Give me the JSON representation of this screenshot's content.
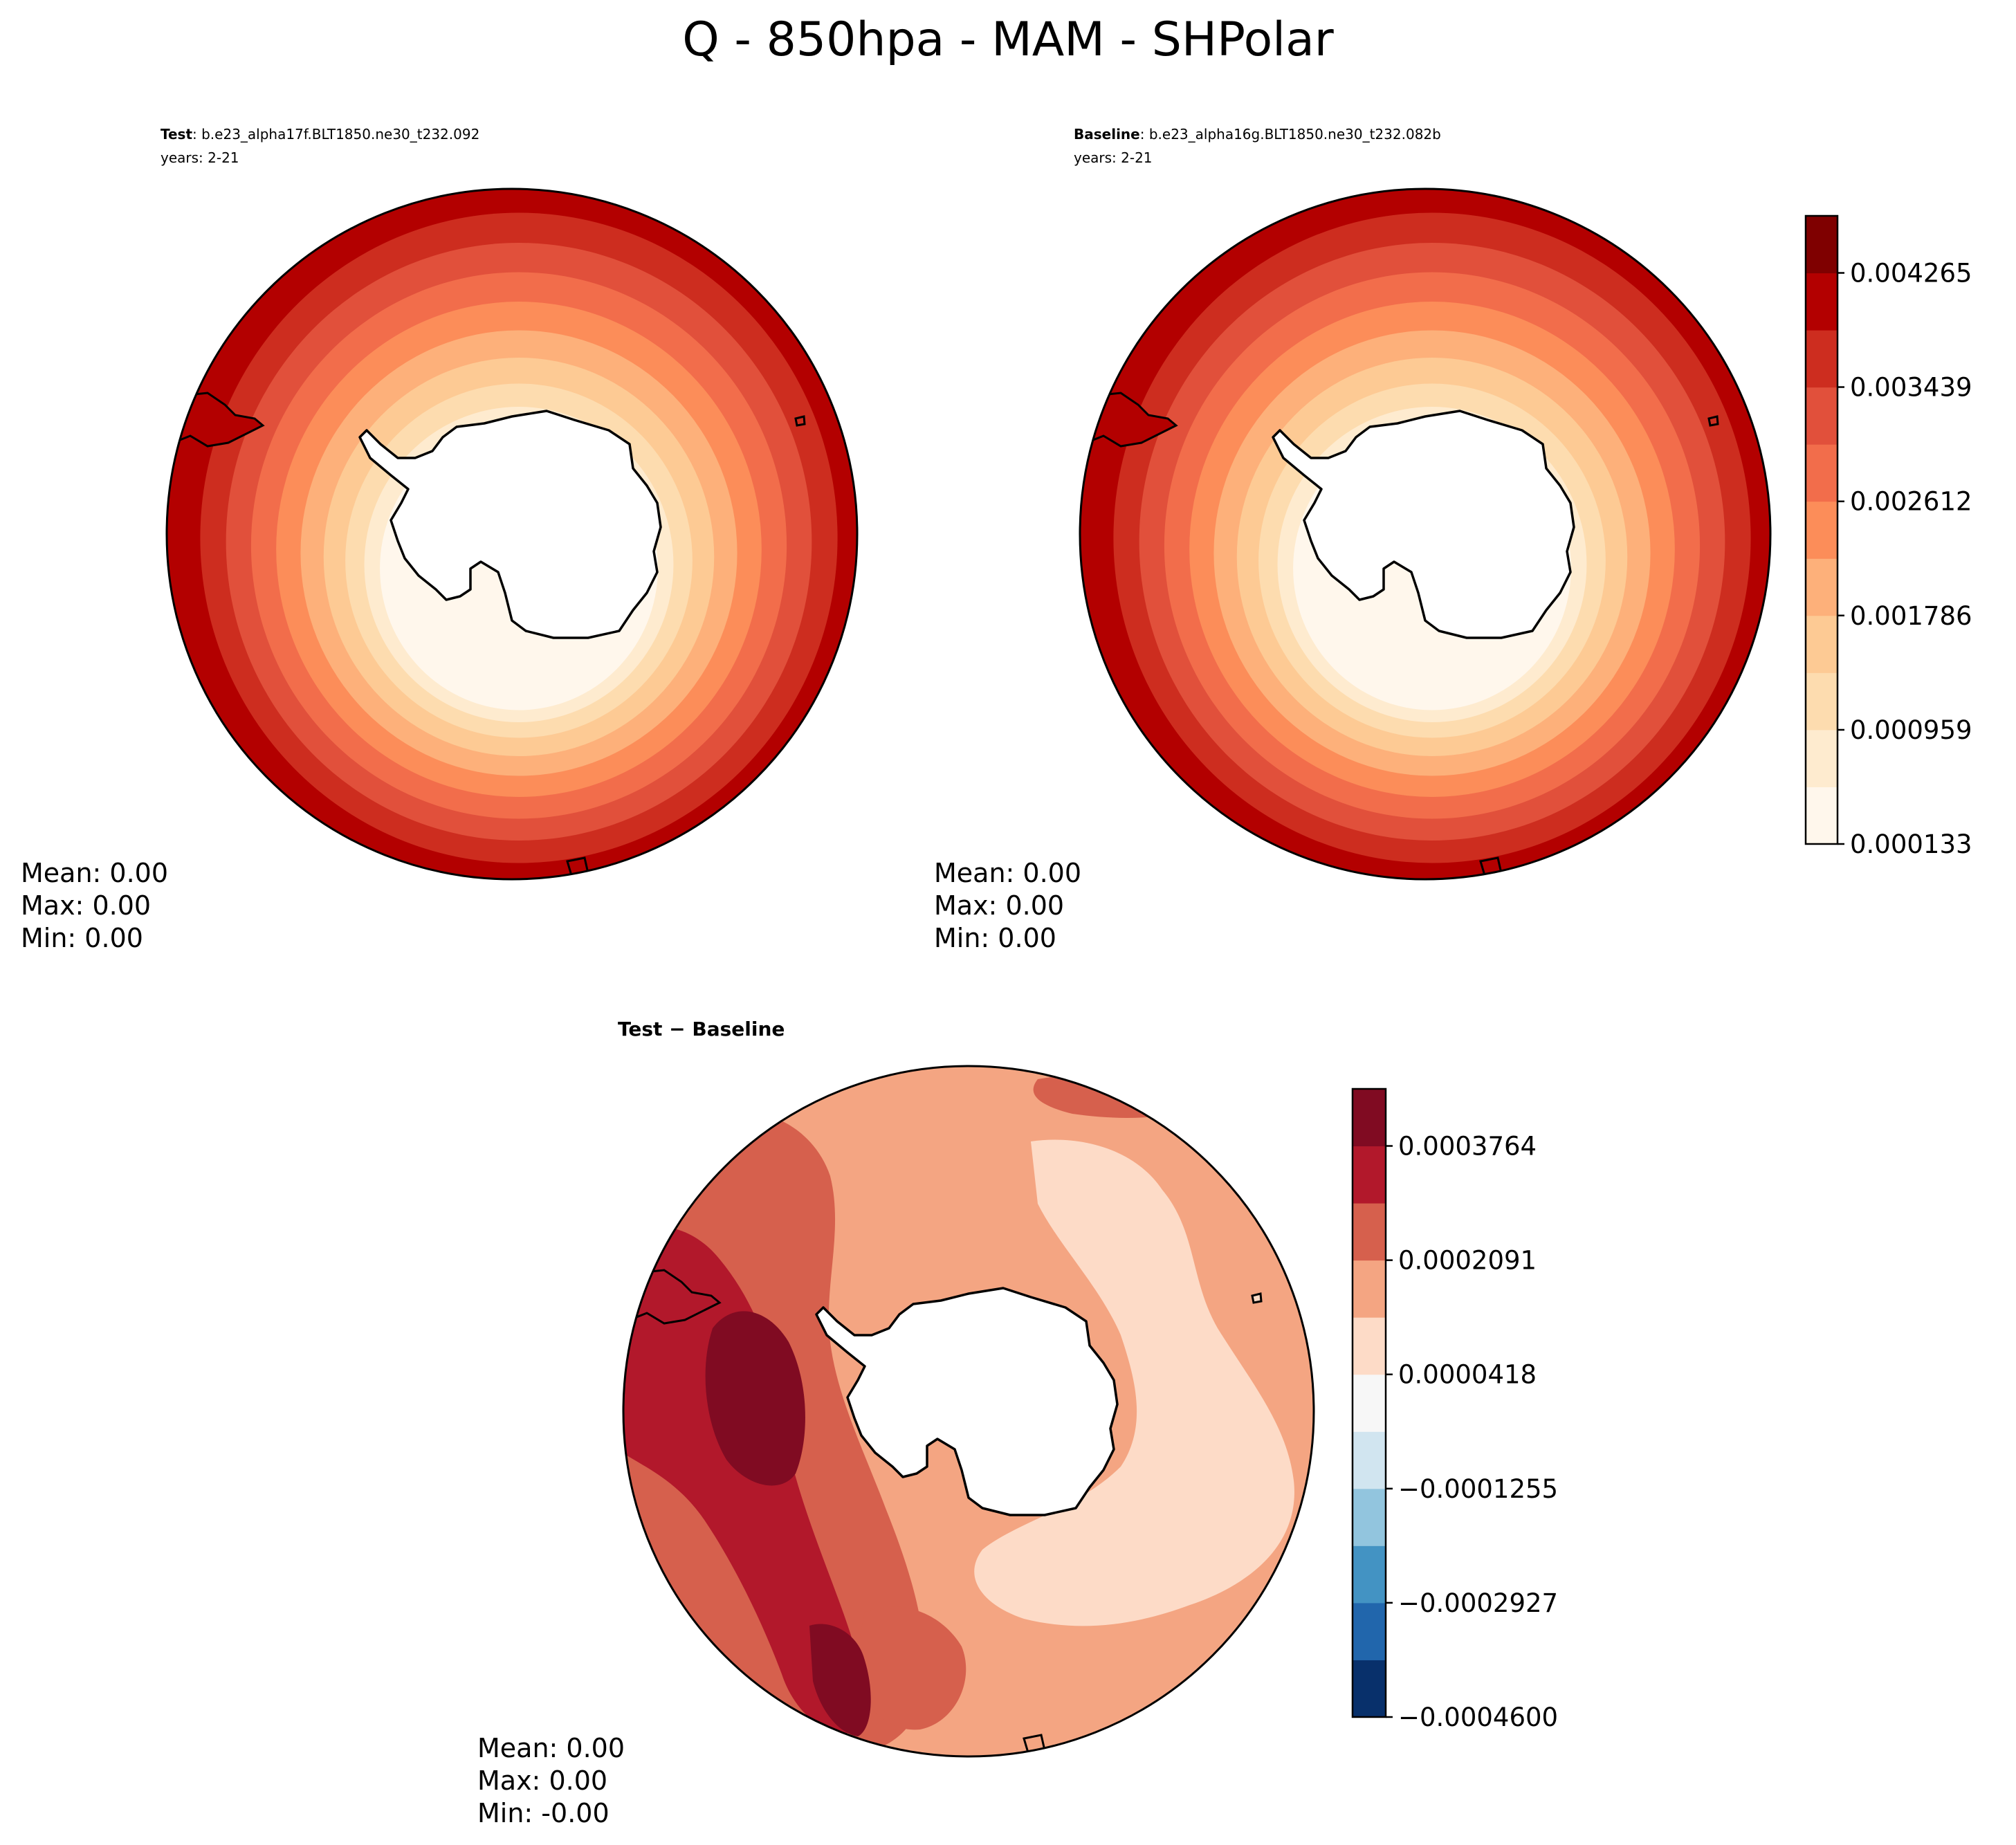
{
  "title": "Q - 850hpa - MAM - SHPolar",
  "panels": {
    "test": {
      "label_bold": "Test",
      "label_rest": ": b.e23_alpha17f.BLT1850.ne30_t232.092",
      "years": "years: 2-21",
      "stats": [
        "Mean:  0.00",
        "Max:  0.00",
        "Min:  0.00"
      ]
    },
    "baseline": {
      "label_bold": "Baseline",
      "label_rest": ": b.e23_alpha16g.BLT1850.ne30_t232.082b",
      "years": "years: 2-21",
      "stats": [
        "Mean:  0.00",
        "Max:  0.00",
        "Min:  0.00"
      ]
    },
    "diff": {
      "label": "Test − Baseline",
      "stats": [
        "Mean:  0.00",
        "Max:  0.00",
        "Min:  -0.00"
      ]
    }
  },
  "chart_data": [
    {
      "type": "heatmap",
      "subtype": "polar filled contour map (South Polar Stereographic)",
      "panel": "test",
      "field": "Q",
      "colormap": "OrRd",
      "levels_min": 0.000133,
      "levels_max": 0.004678,
      "colorbar_ticks": [
        0.000133,
        0.000959,
        0.001786,
        0.002612,
        0.003439,
        0.004265
      ],
      "colorbar_tick_labels": [
        "0.000133",
        "0.000959",
        "0.001786",
        "0.002612",
        "0.003439",
        "0.004265"
      ],
      "colors": [
        "#fff7ec",
        "#feebcf",
        "#fddcaf",
        "#fdca94",
        "#fdb07a",
        "#fc8d59",
        "#f26d4b",
        "#e1503b",
        "#cd2d1f",
        "#b30000",
        "#7f0000"
      ],
      "pattern": "moisture increases from ~0.000133 near the Antarctic coast to ~0.0043 at the outer ring"
    },
    {
      "type": "heatmap",
      "subtype": "polar filled contour map (South Polar Stereographic)",
      "panel": "baseline",
      "field": "Q",
      "colormap": "OrRd",
      "levels_min": 0.000133,
      "levels_max": 0.004678,
      "colorbar_ticks": [
        0.000133,
        0.000959,
        0.001786,
        0.002612,
        0.003439,
        0.004265
      ],
      "colorbar_tick_labels": [
        "0.000133",
        "0.000959",
        "0.001786",
        "0.002612",
        "0.003439",
        "0.004265"
      ],
      "pattern": "moisture increases from ~0.000133 near the Antarctic coast to ~0.0043 at the outer ring"
    },
    {
      "type": "heatmap",
      "subtype": "polar filled contour map (South Polar Stereographic)",
      "panel": "diff",
      "field": "Q difference",
      "colormap": "RdBu_r",
      "levels_min": -0.00046,
      "levels_max": 0.00046,
      "colorbar_ticks": [
        -0.00046,
        -0.0002927,
        -0.0001255,
        4.18e-05,
        0.0002091,
        0.0003764
      ],
      "colorbar_tick_labels": [
        "−0.0004600",
        "−0.0002927",
        "−0.0001255",
        "0.0000418",
        "0.0002091",
        "0.0003764"
      ],
      "colors": [
        "#08306b",
        "#2166ac",
        "#4393c3",
        "#92c5de",
        "#d1e5f0",
        "#f7f7f7",
        "#fddbc7",
        "#f4a582",
        "#d6604d",
        "#b2182b",
        "#800b22"
      ],
      "pattern": "all-positive differences; strongest (~0.0004) in the Pacific sector west of the Antarctic Peninsula"
    }
  ]
}
